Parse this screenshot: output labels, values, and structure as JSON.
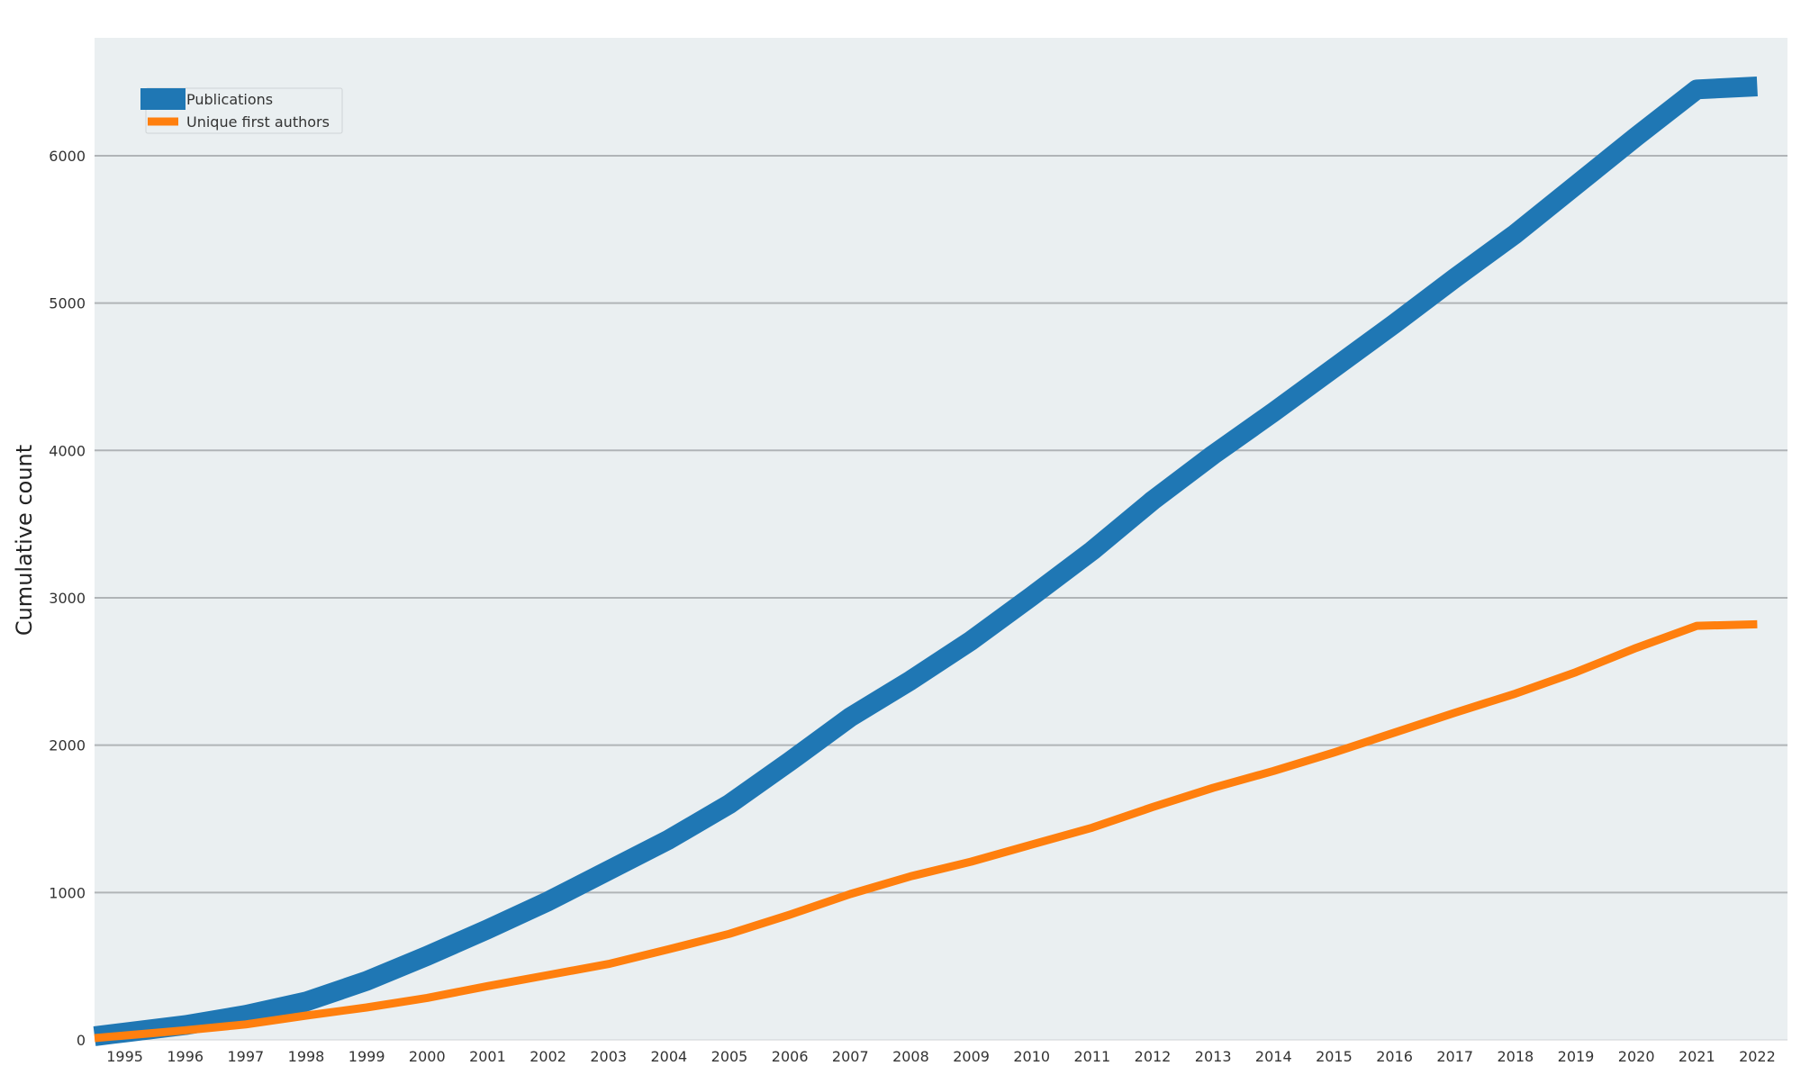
{
  "chart_data": {
    "type": "line",
    "title": "",
    "xlabel": "",
    "ylabel": "Cumulative count",
    "x": [
      1995,
      1996,
      1997,
      1998,
      1999,
      2000,
      2001,
      2002,
      2003,
      2004,
      2005,
      2006,
      2007,
      2008,
      2009,
      2010,
      2011,
      2012,
      2013,
      2014,
      2015,
      2016,
      2017,
      2018,
      2019,
      2020,
      2021,
      2022
    ],
    "xlim": [
      1994.5,
      2022.5
    ],
    "ylim": [
      0,
      6800
    ],
    "yticks": [
      0,
      1000,
      2000,
      3000,
      4000,
      5000,
      6000
    ],
    "grid": "horizontal",
    "legend_position": "top-left",
    "series": [
      {
        "name": "Publications",
        "values": [
          50,
          100,
          170,
          260,
          400,
          570,
          750,
          940,
          1150,
          1360,
          1600,
          1890,
          2190,
          2440,
          2710,
          3010,
          3320,
          3660,
          3970,
          4260,
          4560,
          4860,
          5170,
          5470,
          5800,
          6130,
          6450,
          6470
        ],
        "color": "#1f77b4"
      },
      {
        "name": "Unique first authors",
        "values": [
          30,
          65,
          105,
          165,
          220,
          285,
          365,
          440,
          515,
          615,
          720,
          850,
          990,
          1110,
          1210,
          1325,
          1440,
          1580,
          1710,
          1825,
          1950,
          2085,
          2220,
          2350,
          2495,
          2660,
          2810,
          2820
        ],
        "color": "#ff7f0e"
      }
    ]
  },
  "style": {
    "plot_background": "#eaeff1",
    "grid_color": "#b0b4b7"
  }
}
